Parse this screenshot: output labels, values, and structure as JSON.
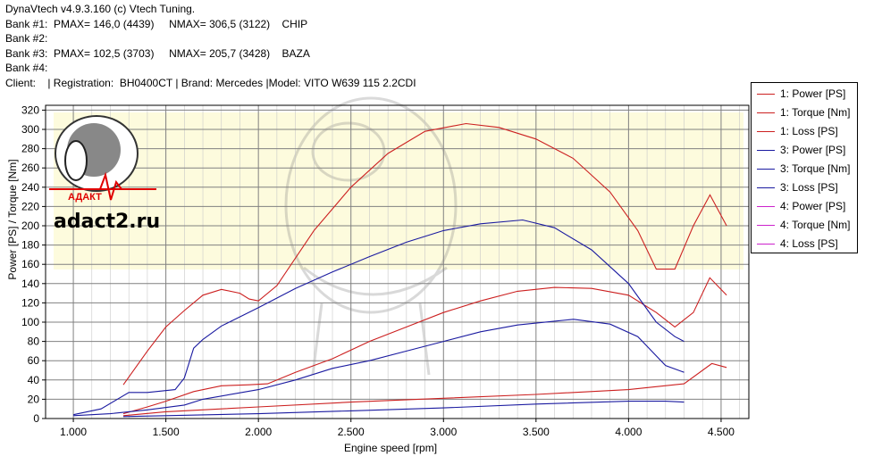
{
  "header": {
    "line1": "DynaVtech v4.9.3.160 (c) Vtech Tuning.",
    "line2": "Bank #1:  PMAX= 146,0 (4439)     NMAX= 306,5 (3122)    CHIP",
    "line3": "Bank #2:",
    "line4": "Bank #3:  PMAX= 102,5 (3703)     NMAX= 205,7 (3428)    BAZA",
    "line5": "Bank #4:",
    "line6": "Client:    | Registration:  BH0400CT | Brand: Mercedes |Model: VITO W639 115 2.2CDI"
  },
  "watermark": {
    "site": "adact2.ru",
    "brand": "АДАКТ",
    "brand_color": "#e00000"
  },
  "colors": {
    "bank1": "#cc2020",
    "bank3": "#1a1aa0",
    "bank4": "#cc22cc",
    "grid": "#808080",
    "axis_text": "#000000"
  },
  "chart_data": {
    "type": "line",
    "xlabel": "Engine speed [rpm]",
    "ylabel": "Power [PS] / Torque [Nm]",
    "xlim": [
      850,
      4650
    ],
    "ylim": [
      0,
      325
    ],
    "x_ticks": [
      1000,
      1500,
      2000,
      2500,
      3000,
      3500,
      4000,
      4500
    ],
    "x_tick_labels": [
      "1.000",
      "1.500",
      "2.000",
      "2.500",
      "3.000",
      "3.500",
      "4.000",
      "4.500"
    ],
    "y_ticks": [
      0,
      20,
      40,
      60,
      80,
      100,
      120,
      140,
      160,
      180,
      200,
      220,
      240,
      260,
      280,
      300,
      320
    ],
    "grid": true,
    "legend_position": "right",
    "legend": [
      {
        "label": "1: Power [PS]",
        "color": "#cc2020"
      },
      {
        "label": "1: Torque [Nm]",
        "color": "#cc2020"
      },
      {
        "label": "1: Loss [PS]",
        "color": "#cc2020"
      },
      {
        "label": "3: Power [PS]",
        "color": "#1a1aa0"
      },
      {
        "label": "3: Torque [Nm]",
        "color": "#1a1aa0"
      },
      {
        "label": "3: Loss [PS]",
        "color": "#1a1aa0"
      },
      {
        "label": "4: Power [PS]",
        "color": "#cc22cc"
      },
      {
        "label": "4: Torque [Nm]",
        "color": "#cc22cc"
      },
      {
        "label": "4: Loss [PS]",
        "color": "#cc22cc"
      }
    ],
    "series": [
      {
        "name": "1: Power [PS]",
        "color": "#cc2020",
        "x": [
          1270,
          1400,
          1500,
          1650,
          1800,
          1950,
          2050,
          2200,
          2400,
          2600,
          2800,
          3000,
          3200,
          3400,
          3600,
          3800,
          4000,
          4150,
          4250,
          4350,
          4439,
          4530
        ],
        "y": [
          5,
          12,
          18,
          28,
          34,
          35,
          36,
          48,
          62,
          80,
          95,
          110,
          122,
          132,
          136,
          135,
          128,
          110,
          95,
          110,
          146,
          128
        ]
      },
      {
        "name": "1: Torque [Nm]",
        "color": "#cc2020",
        "x": [
          1270,
          1400,
          1500,
          1600,
          1700,
          1800,
          1900,
          1950,
          2000,
          2100,
          2300,
          2500,
          2700,
          2900,
          3122,
          3300,
          3500,
          3700,
          3900,
          4050,
          4150,
          4250,
          4350,
          4440,
          4530
        ],
        "y": [
          35,
          70,
          95,
          112,
          128,
          134,
          130,
          124,
          122,
          138,
          195,
          240,
          275,
          298,
          306,
          302,
          290,
          270,
          235,
          195,
          155,
          155,
          200,
          232,
          200
        ]
      },
      {
        "name": "1: Loss [PS]",
        "color": "#cc2020",
        "x": [
          1270,
          1500,
          2000,
          2500,
          3000,
          3500,
          4000,
          4300,
          4450,
          4530
        ],
        "y": [
          3,
          7,
          12,
          17,
          21,
          25,
          30,
          36,
          57,
          53
        ]
      },
      {
        "name": "3: Power [PS]",
        "color": "#1a1aa0",
        "x": [
          1000,
          1200,
          1400,
          1600,
          1700,
          2000,
          2200,
          2400,
          2600,
          2800,
          3000,
          3200,
          3400,
          3600,
          3703,
          3900,
          4050,
          4200,
          4300
        ],
        "y": [
          3,
          5,
          9,
          14,
          20,
          30,
          40,
          52,
          60,
          70,
          80,
          90,
          97,
          101,
          103,
          98,
          85,
          55,
          48
        ]
      },
      {
        "name": "3: Torque [Nm]",
        "color": "#1a1aa0",
        "x": [
          1000,
          1150,
          1300,
          1400,
          1550,
          1600,
          1650,
          1700,
          1800,
          2000,
          2200,
          2400,
          2600,
          2800,
          3000,
          3200,
          3428,
          3600,
          3800,
          4000,
          4150,
          4250,
          4300
        ],
        "y": [
          4,
          10,
          27,
          27,
          30,
          42,
          73,
          82,
          96,
          115,
          135,
          152,
          168,
          183,
          195,
          202,
          206,
          198,
          175,
          140,
          100,
          85,
          80
        ]
      },
      {
        "name": "3: Loss [PS]",
        "color": "#1a1aa0",
        "x": [
          1270,
          1500,
          2000,
          2500,
          3000,
          3500,
          4000,
          4200,
          4300
        ],
        "y": [
          2,
          3,
          5,
          8,
          11,
          15,
          18,
          18,
          17
        ]
      },
      {
        "name": "4: Power [PS]",
        "color": "#cc22cc",
        "x": [],
        "y": []
      },
      {
        "name": "4: Torque [Nm]",
        "color": "#cc22cc",
        "x": [],
        "y": []
      },
      {
        "name": "4: Loss [PS]",
        "color": "#cc22cc",
        "x": [],
        "y": []
      }
    ]
  }
}
